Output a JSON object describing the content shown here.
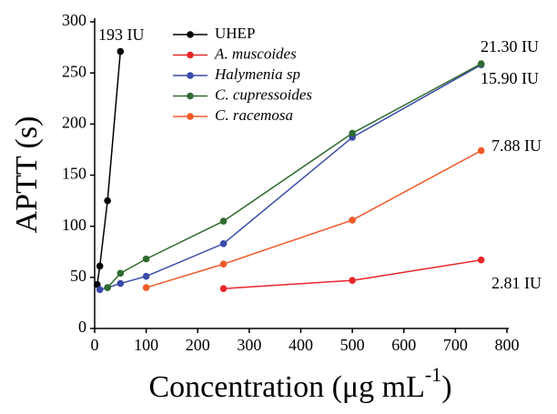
{
  "chart_data": {
    "type": "line",
    "xlabel": [
      "Concentration (μg mL",
      "-1",
      ")"
    ],
    "ylabel": "APTT (s)",
    "xlim": [
      0,
      800
    ],
    "xticks": [
      0,
      100,
      200,
      300,
      400,
      500,
      600,
      700,
      800
    ],
    "ylim": [
      0,
      300
    ],
    "yticks": [
      0,
      50,
      100,
      150,
      200,
      250,
      300
    ],
    "legend": "top-left",
    "series": [
      {
        "name": "UHEP",
        "color": "#000000",
        "italic": false,
        "x": [
          5,
          10,
          25,
          50
        ],
        "values": [
          43,
          61,
          125,
          271
        ]
      },
      {
        "name": "A. muscoides",
        "color": "#e8262a",
        "italic": true,
        "x": [
          250,
          500,
          750
        ],
        "values": [
          39,
          47,
          67
        ]
      },
      {
        "name": "Halymenia sp",
        "color": "#3a4ba8",
        "italic": true,
        "x": [
          10,
          25,
          50,
          100,
          250,
          500,
          750
        ],
        "values": [
          38,
          40,
          44,
          51,
          83,
          187,
          258
        ]
      },
      {
        "name": "C. cupressoides",
        "color": "#2f6b2f",
        "italic": true,
        "x": [
          25,
          50,
          100,
          250,
          500,
          750
        ],
        "values": [
          40,
          54,
          68,
          105,
          191,
          259
        ]
      },
      {
        "name": "C. racemosa",
        "color": "#f05a28",
        "italic": true,
        "x": [
          100,
          250,
          500,
          750
        ],
        "values": [
          40,
          63,
          106,
          174
        ]
      }
    ],
    "annotations": [
      "193 IU",
      "21.30 IU",
      "15.90 IU",
      "7.88 IU",
      "2.81 IU"
    ]
  }
}
